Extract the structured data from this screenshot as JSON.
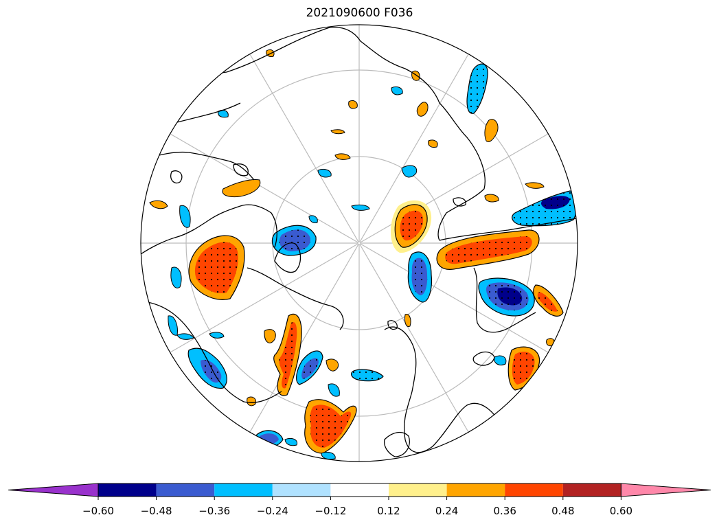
{
  "title": "2021090600 F036",
  "colorbar": {
    "extend": "both",
    "colors": [
      "#9932cc",
      "#00008b",
      "#3a5bd0",
      "#00bfff",
      "#b0e2ff",
      "#ffffff",
      "#fff08c",
      "#ffa500",
      "#ff4500",
      "#b22222",
      "#ff88aa"
    ],
    "ticks": [
      "−0.60",
      "−0.48",
      "−0.36",
      "−0.24",
      "−0.12",
      "0.12",
      "0.24",
      "0.36",
      "0.48",
      "0.60"
    ]
  },
  "map": {
    "projection": "north polar stereographic",
    "graticule": true,
    "stippling": "significance dots",
    "contour_colors": {
      "pos_weak": "#fff08c",
      "pos": "#ffa500",
      "pos_strong": "#ff4500",
      "neg_weak": "#b0e2ff",
      "neg": "#00bfff",
      "neg_mid": "#3a5bd0",
      "neg_strong": "#00008b"
    }
  }
}
